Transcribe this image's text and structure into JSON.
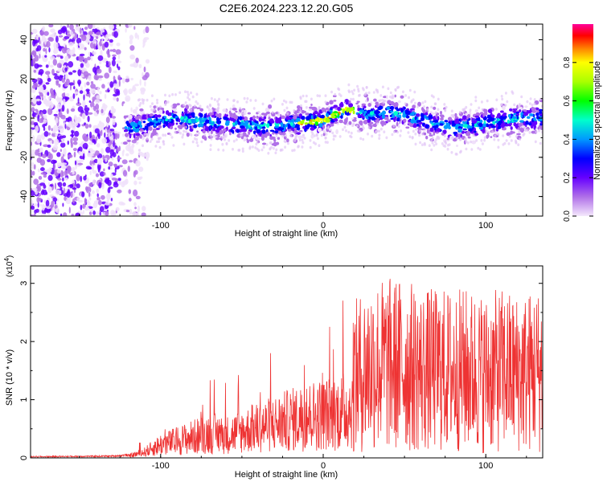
{
  "title": "C2E6.2024.223.12.20.G05",
  "chart_data": [
    {
      "type": "heatmap",
      "xlabel": "Height of straight line (km)",
      "ylabel": "Frequency (Hz)",
      "xlim": [
        -180,
        135
      ],
      "ylim": [
        -50,
        48
      ],
      "xticks": [
        -100,
        0,
        100
      ],
      "yticks": [
        -40,
        -20,
        0,
        20,
        40
      ],
      "colorbar": {
        "label": "Normalized spectral amplitude",
        "range": [
          0,
          1
        ],
        "ticks": [
          0.0,
          0.2,
          0.4,
          0.6,
          0.8
        ]
      },
      "ridge": {
        "x": [
          -120,
          -110,
          -100,
          -90,
          -80,
          -70,
          -60,
          -50,
          -40,
          -30,
          -20,
          -10,
          0,
          5,
          10,
          15,
          20,
          30,
          40,
          50,
          60,
          70,
          80,
          90,
          100,
          110,
          120,
          130
        ],
        "y": [
          -5,
          -3,
          -1,
          0,
          -1,
          -2,
          -3,
          -3,
          -4,
          -4,
          -3,
          -2,
          -1,
          1,
          3,
          5,
          3,
          2,
          3,
          2,
          -1,
          -3,
          -5,
          -4,
          -2,
          -1,
          0,
          0
        ]
      }
    },
    {
      "type": "line",
      "xlabel": "Height of straight line (km)",
      "ylabel": "SNR (10 * v/v)",
      "yscale_label": "(x10",
      "yscale_exp": "4",
      "xlim": [
        -180,
        135
      ],
      "ylim": [
        0,
        3.3
      ],
      "xticks": [
        -100,
        0,
        100
      ],
      "yticks": [
        0,
        1,
        2,
        3
      ],
      "color": "#ee3333",
      "envelope": {
        "x": [
          -180,
          -130,
          -120,
          -110,
          -100,
          -90,
          -80,
          -70,
          -60,
          -50,
          -40,
          -30,
          -20,
          -10,
          0,
          10,
          20,
          30,
          40,
          50,
          60,
          70,
          80,
          90,
          100,
          110,
          120,
          130,
          135
        ],
        "y": [
          0.02,
          0.03,
          0.05,
          0.15,
          0.35,
          0.45,
          0.55,
          0.65,
          0.6,
          0.7,
          0.8,
          0.9,
          1.0,
          1.1,
          1.15,
          1.2,
          1.4,
          1.6,
          1.6,
          1.6,
          1.5,
          1.5,
          1.5,
          1.5,
          1.45,
          1.5,
          1.45,
          1.5,
          1.5
        ]
      }
    }
  ]
}
